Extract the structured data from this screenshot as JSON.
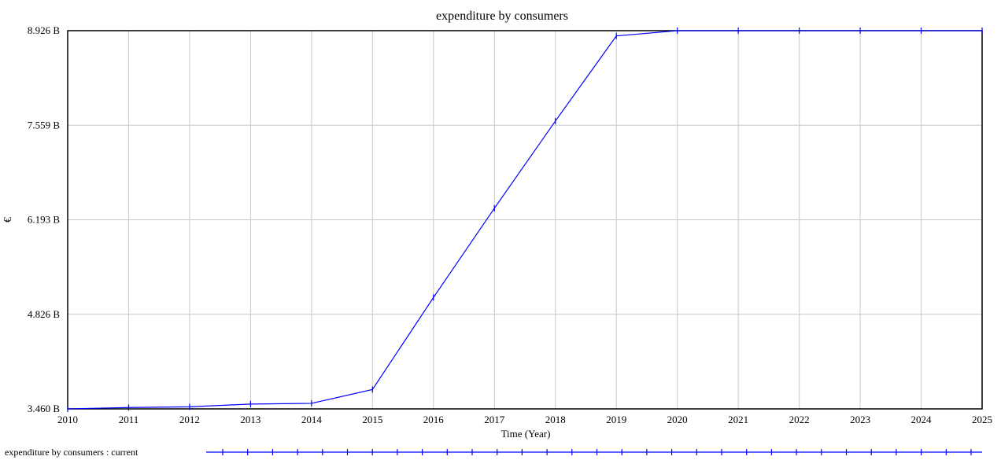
{
  "chart_data": {
    "type": "line",
    "title": "expenditure by consumers",
    "xlabel": "Time (Year)",
    "ylabel": "€",
    "x_ticks": [
      "2010",
      "2011",
      "2012",
      "2013",
      "2014",
      "2015",
      "2016",
      "2017",
      "2018",
      "2019",
      "2020",
      "2021",
      "2022",
      "2023",
      "2024",
      "2025"
    ],
    "y_ticks": [
      "3.460 B",
      "4.826 B",
      "6.193 B",
      "7.559 B",
      "8.926 B"
    ],
    "y_tick_values": [
      3.46,
      4.826,
      6.193,
      7.559,
      8.926
    ],
    "xlim": [
      2010,
      2025
    ],
    "ylim": [
      3.46,
      8.926
    ],
    "grid": true,
    "legend_position": "bottom-left",
    "colors": {
      "series": "#0000ff",
      "grid": "#c8c8c8",
      "frame": "#000000"
    },
    "series": [
      {
        "name": "expenditure by consumers : current",
        "x": [
          2010,
          2011,
          2012,
          2013,
          2014,
          2015,
          2016,
          2017,
          2018,
          2019,
          2020,
          2021,
          2022,
          2023,
          2024,
          2025
        ],
        "values": [
          3.46,
          3.48,
          3.49,
          3.53,
          3.54,
          3.74,
          5.07,
          6.36,
          7.62,
          8.85,
          8.926,
          8.926,
          8.926,
          8.926,
          8.926,
          8.926
        ]
      }
    ]
  }
}
